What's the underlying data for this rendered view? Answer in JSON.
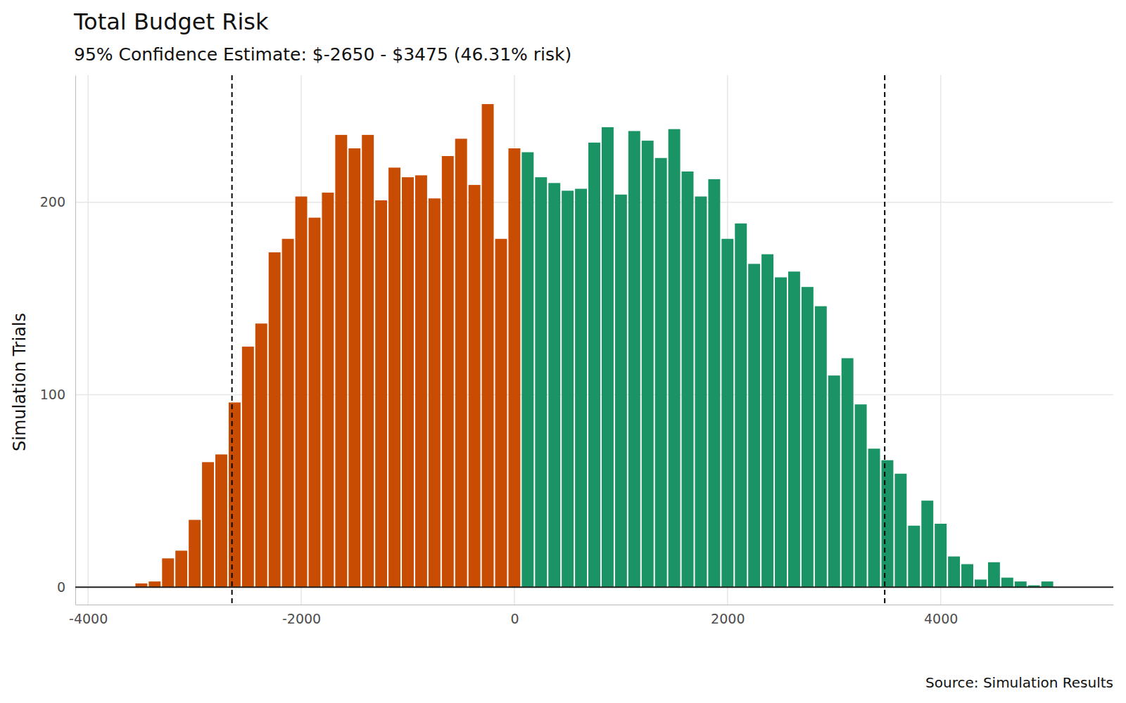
{
  "chart_data": {
    "type": "histogram",
    "title": "Total Budget Risk",
    "subtitle": "95% Confidence Estimate: $-2650 - $3475 (46.31% risk)",
    "ylabel": "Simulation Trials",
    "caption": "Source: Simulation Results",
    "bins": [
      -3562.5,
      -3437.5,
      -3312.5,
      -3187.5,
      -3062.5,
      -2937.5,
      -2812.5,
      -2687.5,
      -2562.5,
      -2437.5,
      -2312.5,
      -2187.5,
      -2062.5,
      -1937.5,
      -1812.5,
      -1687.5,
      -1562.5,
      -1437.5,
      -1312.5,
      -1187.5,
      -1062.5,
      -937.5,
      -812.5,
      -687.5,
      -562.5,
      -437.5,
      -312.5,
      -187.5,
      -62.5,
      62.5,
      187.5,
      312.5,
      437.5,
      562.5,
      687.5,
      812.5,
      937.5,
      1062.5,
      1187.5,
      1312.5,
      1437.5,
      1562.5,
      1687.5,
      1812.5,
      1937.5,
      2062.5,
      2187.5,
      2312.5,
      2437.5,
      2562.5,
      2687.5,
      2812.5,
      2937.5,
      3062.5,
      3187.5,
      3312.5,
      3437.5,
      3562.5,
      3687.5,
      3812.5,
      3937.5,
      4062.5,
      4187.5,
      4312.5,
      4437.5,
      4562.5,
      4687.5,
      4812.5,
      4937.5,
      5062.5
    ],
    "values": [
      2,
      3,
      15,
      19,
      35,
      65,
      69,
      96,
      125,
      137,
      174,
      181,
      203,
      192,
      205,
      235,
      228,
      235,
      201,
      218,
      213,
      214,
      202,
      224,
      233,
      209,
      251,
      181,
      228,
      226,
      213,
      210,
      206,
      207,
      231,
      239,
      204,
      237,
      232,
      223,
      238,
      216,
      203,
      212,
      181,
      189,
      168,
      173,
      161,
      164,
      156,
      146,
      110,
      119,
      95,
      72,
      66,
      59,
      32,
      45,
      33,
      16,
      12,
      4,
      13,
      5,
      3,
      1,
      3
    ],
    "colors": [
      "#c94c03",
      "#c94c03",
      "#c94c03",
      "#c94c03",
      "#c94c03",
      "#c94c03",
      "#c94c03",
      "#c94c03",
      "#c94c03",
      "#c94c03",
      "#c94c03",
      "#c94c03",
      "#c94c03",
      "#c94c03",
      "#c94c03",
      "#c94c03",
      "#c94c03",
      "#c94c03",
      "#c94c03",
      "#c94c03",
      "#c94c03",
      "#c94c03",
      "#c94c03",
      "#c94c03",
      "#c94c03",
      "#c94c03",
      "#c94c03",
      "#c94c03",
      "#c94c03",
      "#1a9464",
      "#1a9464",
      "#1a9464",
      "#1a9464",
      "#1a9464",
      "#1a9464",
      "#1a9464",
      "#1a9464",
      "#1a9464",
      "#1a9464",
      "#1a9464",
      "#1a9464",
      "#1a9464",
      "#1a9464",
      "#1a9464",
      "#1a9464",
      "#1a9464",
      "#1a9464",
      "#1a9464",
      "#1a9464",
      "#1a9464",
      "#1a9464",
      "#1a9464",
      "#1a9464",
      "#1a9464",
      "#1a9464",
      "#1a9464",
      "#1a9464",
      "#1a9464",
      "#1a9464",
      "#1a9464",
      "#1a9464",
      "#1a9464",
      "#1a9464",
      "#1a9464",
      "#1a9464",
      "#1a9464",
      "#1a9464",
      "#1a9464",
      "#1a9464"
    ],
    "reference_lines": [
      -2650,
      3475
    ],
    "xlim": [
      -4120,
      5620
    ],
    "xticks": [
      -4000,
      -2000,
      0,
      2000,
      4000
    ],
    "ylim": [
      -9,
      266
    ],
    "yticks": [
      0,
      100,
      200
    ],
    "grid": true
  }
}
